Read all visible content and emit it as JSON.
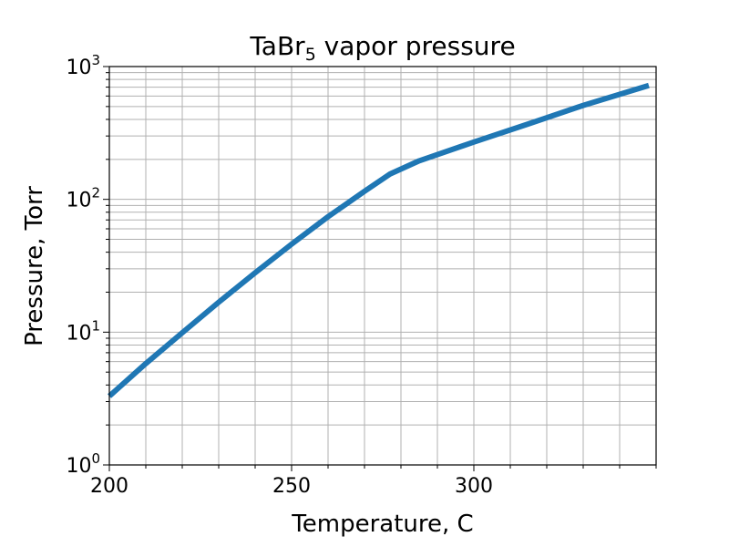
{
  "chart_data": {
    "type": "line",
    "title": "TaBr",
    "title_subscript": "5",
    "title_suffix": " vapor pressure",
    "xlabel": "Temperature, C",
    "ylabel": "Pressure, Torr",
    "xlim": [
      200,
      350
    ],
    "ylim": [
      1,
      1000
    ],
    "yscale": "log",
    "grid": true,
    "x_ticks": [
      {
        "value": 200,
        "label": "200"
      },
      {
        "value": 250,
        "label": "250"
      },
      {
        "value": 300,
        "label": "300"
      }
    ],
    "y_ticks": [
      {
        "value": 1,
        "base": "10",
        "exp": "0"
      },
      {
        "value": 10,
        "base": "10",
        "exp": "1"
      },
      {
        "value": 100,
        "base": "10",
        "exp": "2"
      },
      {
        "value": 1000,
        "base": "10",
        "exp": "3"
      }
    ],
    "line_color": "#1f77b4",
    "series": [
      {
        "x": [
          200,
          210,
          220,
          230,
          240,
          250,
          260,
          270,
          277,
          285,
          300,
          315,
          330,
          348
        ],
        "y": [
          3.3,
          5.8,
          9.9,
          16.8,
          28,
          46,
          74,
          115,
          155,
          195,
          270,
          370,
          510,
          720
        ]
      }
    ]
  }
}
